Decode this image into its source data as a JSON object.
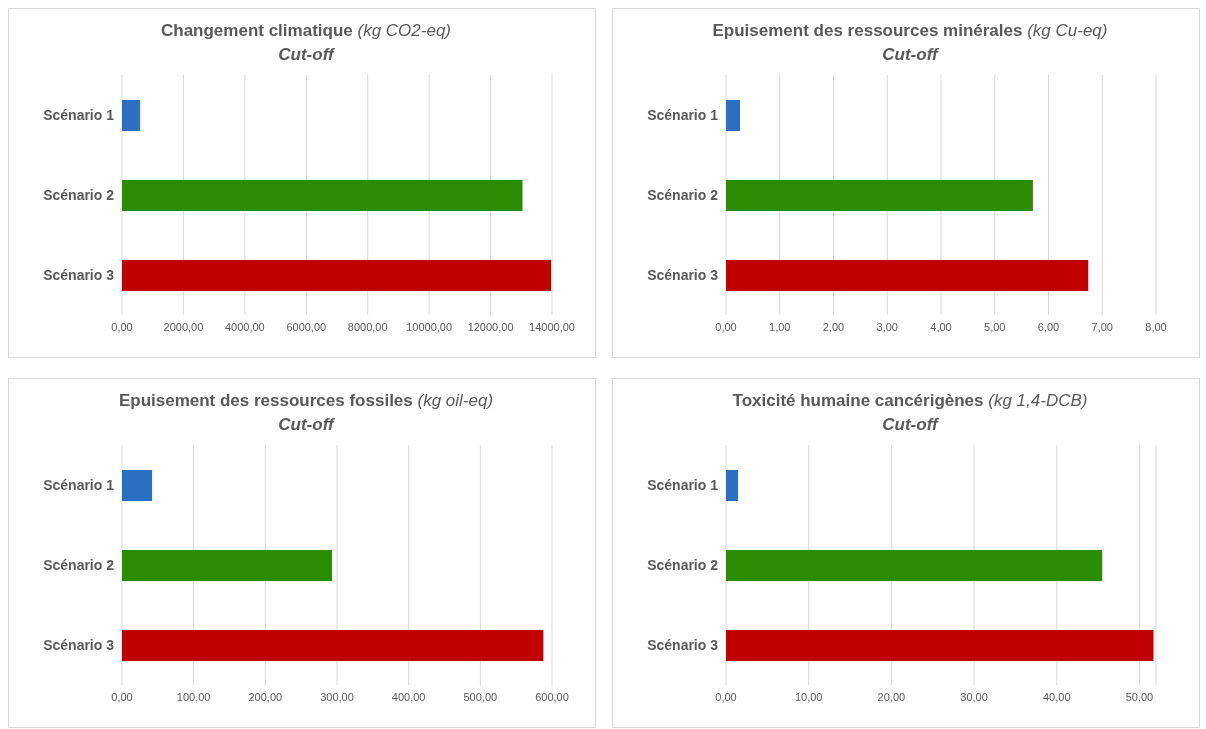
{
  "chart_data": [
    {
      "type": "bar",
      "orientation": "horizontal",
      "title": "Changement climatique (kg CO2-eq)",
      "subtitle": "Cut-off",
      "categories": [
        "Scénario 1",
        "Scénario 2",
        "Scénario 3"
      ],
      "values": [
        590,
        13040,
        13970
      ],
      "colors": [
        "#2a6fc0",
        "#2a8c00",
        "#c00000"
      ],
      "xlim": [
        0,
        14000
      ],
      "xticks": [
        {
          "value": 0,
          "label": "0,00"
        },
        {
          "value": 2000,
          "label": "2000,00"
        },
        {
          "value": 4000,
          "label": "4000,00"
        },
        {
          "value": 6000,
          "label": "6000,00"
        },
        {
          "value": 8000,
          "label": "8000,00"
        },
        {
          "value": 10000,
          "label": "10000,00"
        },
        {
          "value": 12000,
          "label": "12000,00"
        },
        {
          "value": 14000,
          "label": "14000,00"
        }
      ],
      "grid": "x"
    },
    {
      "type": "bar",
      "orientation": "horizontal",
      "title": "Epuisement des ressources minérales (kg Cu-eq)",
      "subtitle": "Cut-off",
      "categories": [
        "Scénario 1",
        "Scénario 2",
        "Scénario 3"
      ],
      "values": [
        0.26,
        5.71,
        6.74
      ],
      "colors": [
        "#2a6fc0",
        "#2a8c00",
        "#c00000"
      ],
      "xlim": [
        0,
        8
      ],
      "xticks": [
        {
          "value": 0,
          "label": "0,00"
        },
        {
          "value": 1,
          "label": "1,00"
        },
        {
          "value": 2,
          "label": "2,00"
        },
        {
          "value": 3,
          "label": "3,00"
        },
        {
          "value": 4,
          "label": "4,00"
        },
        {
          "value": 5,
          "label": "5,00"
        },
        {
          "value": 6,
          "label": "6,00"
        },
        {
          "value": 7,
          "label": "7,00"
        },
        {
          "value": 8,
          "label": "8,00"
        }
      ],
      "grid": "x"
    },
    {
      "type": "bar",
      "orientation": "horizontal",
      "title": "Epuisement des ressources fossiles (kg oil-eq)",
      "subtitle": "Cut-off",
      "categories": [
        "Scénario 1",
        "Scénario 2",
        "Scénario 3"
      ],
      "values": [
        42,
        293,
        588
      ],
      "colors": [
        "#2a6fc0",
        "#2a8c00",
        "#c00000"
      ],
      "xlim": [
        0,
        600
      ],
      "xticks": [
        {
          "value": 0,
          "label": "0,00"
        },
        {
          "value": 100,
          "label": "100,00"
        },
        {
          "value": 200,
          "label": "200,00"
        },
        {
          "value": 300,
          "label": "300,00"
        },
        {
          "value": 400,
          "label": "400,00"
        },
        {
          "value": 500,
          "label": "500,00"
        },
        {
          "value": 600,
          "label": "600,00"
        }
      ],
      "grid": "x"
    },
    {
      "type": "bar",
      "orientation": "horizontal",
      "title": "Toxicité humaine cancérigènes (kg 1,4-DCB)",
      "subtitle": "Cut-off",
      "categories": [
        "Scénario 1",
        "Scénario 2",
        "Scénario 3"
      ],
      "values": [
        1.46,
        45.5,
        51.7
      ],
      "colors": [
        "#2a6fc0",
        "#2a8c00",
        "#c00000"
      ],
      "xlim": [
        0,
        52
      ],
      "xticks": [
        {
          "value": 0,
          "label": "0,00"
        },
        {
          "value": 10,
          "label": "10,00"
        },
        {
          "value": 20,
          "label": "20,00"
        },
        {
          "value": 30,
          "label": "30,00"
        },
        {
          "value": 40,
          "label": "40,00"
        },
        {
          "value": 50,
          "label": "50,00"
        }
      ],
      "grid": "x"
    }
  ]
}
